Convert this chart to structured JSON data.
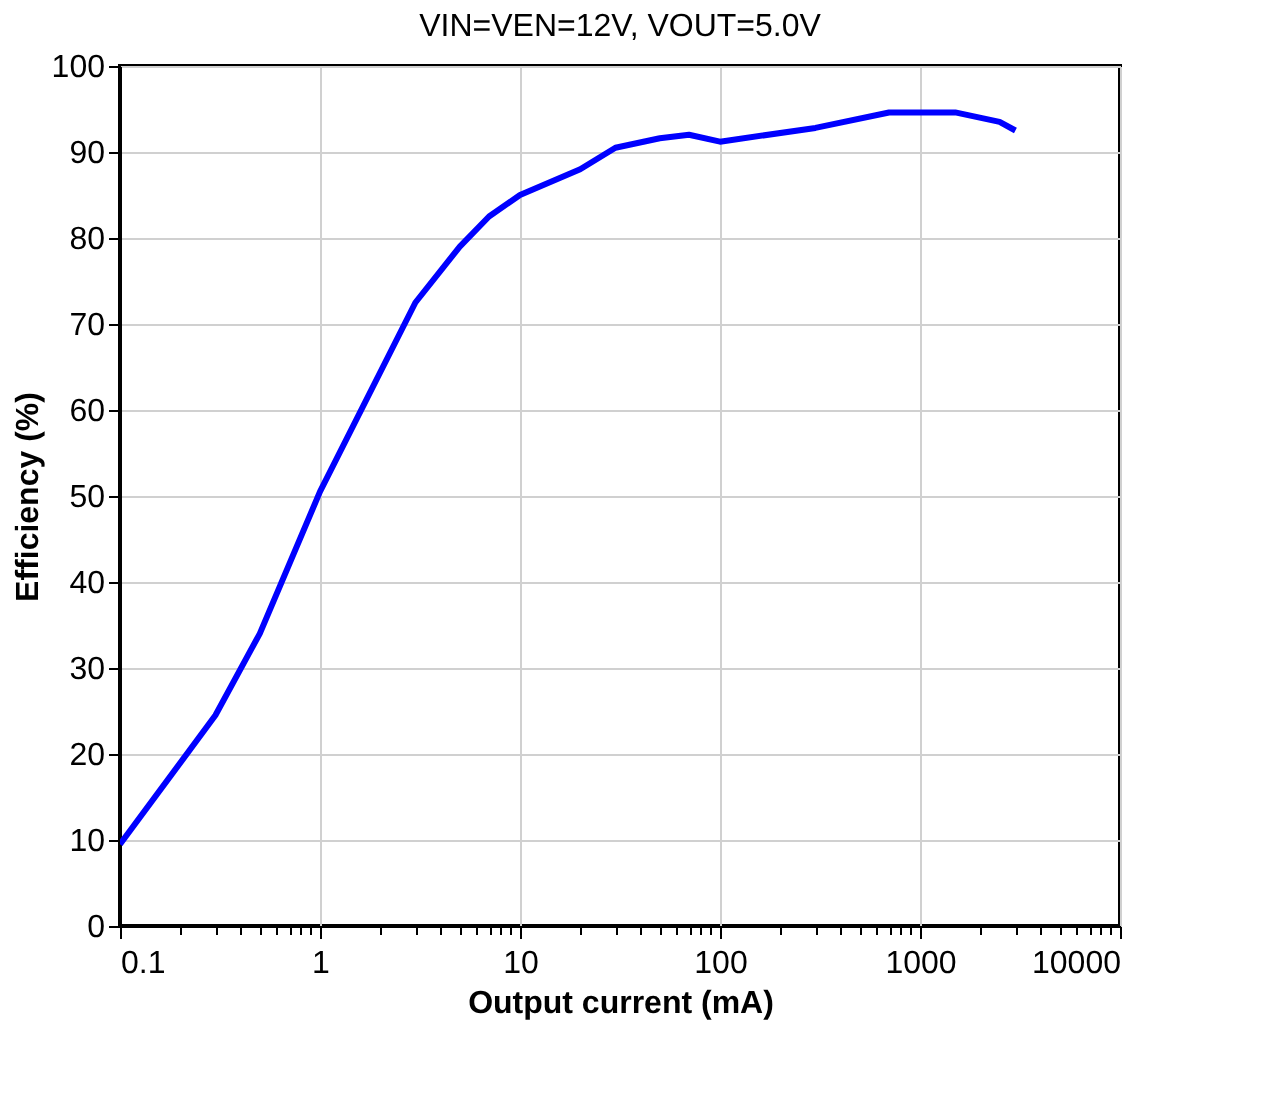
{
  "chart_data": {
    "type": "line",
    "title": "VIN=VEN=12V, VOUT=5.0V",
    "xlabel": "Output current (mA)",
    "ylabel": "Efficiency (%)",
    "log": "x",
    "grid": true,
    "marker": "none",
    "line_style": "solid",
    "xlim": [
      0.1,
      10000
    ],
    "ylim": [
      0,
      100
    ],
    "xticks": [
      0.1,
      {
        "value": 0.2,
        "label": null
      },
      {
        "value": 0.3,
        "label": null
      },
      {
        "value": 0.4,
        "label": null
      },
      {
        "value": 0.5,
        "label": null
      },
      {
        "value": 0.6,
        "label": null
      },
      {
        "value": 0.7,
        "label": null
      },
      {
        "value": 0.8,
        "label": null
      },
      {
        "value": 0.9,
        "label": null
      },
      1,
      {
        "value": 2,
        "label": null
      },
      {
        "value": 3,
        "label": null
      },
      {
        "value": 4,
        "label": null
      },
      {
        "value": 5,
        "label": null
      },
      {
        "value": 6,
        "label": null
      },
      {
        "value": 7,
        "label": null
      },
      {
        "value": 8,
        "label": null
      },
      {
        "value": 9,
        "label": null
      },
      10,
      {
        "value": 20,
        "label": null
      },
      {
        "value": 30,
        "label": null
      },
      {
        "value": 40,
        "label": null
      },
      {
        "value": 50,
        "label": null
      },
      {
        "value": 60,
        "label": null
      },
      {
        "value": 70,
        "label": null
      },
      {
        "value": 80,
        "label": null
      },
      {
        "value": 90,
        "label": null
      },
      100,
      {
        "value": 200,
        "label": null
      },
      {
        "value": 300,
        "label": null
      },
      {
        "value": 400,
        "label": null
      },
      {
        "value": 500,
        "label": null
      },
      {
        "value": 600,
        "label": null
      },
      {
        "value": 700,
        "label": null
      },
      {
        "value": 800,
        "label": null
      },
      {
        "value": 900,
        "label": null
      },
      1000,
      {
        "value": 2000,
        "label": null
      },
      {
        "value": 3000,
        "label": null
      },
      {
        "value": 4000,
        "label": null
      },
      {
        "value": 5000,
        "label": null
      },
      {
        "value": 6000,
        "label": null
      },
      {
        "value": 7000,
        "label": null
      },
      {
        "value": 8000,
        "label": null
      },
      {
        "value": 9000,
        "label": null
      },
      10000
    ],
    "yticks": [
      0,
      10,
      20,
      30,
      40,
      50,
      60,
      70,
      80,
      90,
      100
    ],
    "x": [
      0.1,
      0.3,
      0.5,
      1,
      3,
      5,
      7,
      10,
      20,
      30,
      50,
      70,
      100,
      300,
      700,
      1500,
      2500,
      3000
    ],
    "series": [
      {
        "color": "#0000ff",
        "values": [
          9.5,
          24.5,
          34,
          50.5,
          72.5,
          79,
          82.5,
          85,
          88,
          90.5,
          91.6,
          92,
          91.2,
          92.8,
          94.6,
          94.6,
          93.5,
          92.5
        ]
      }
    ]
  }
}
